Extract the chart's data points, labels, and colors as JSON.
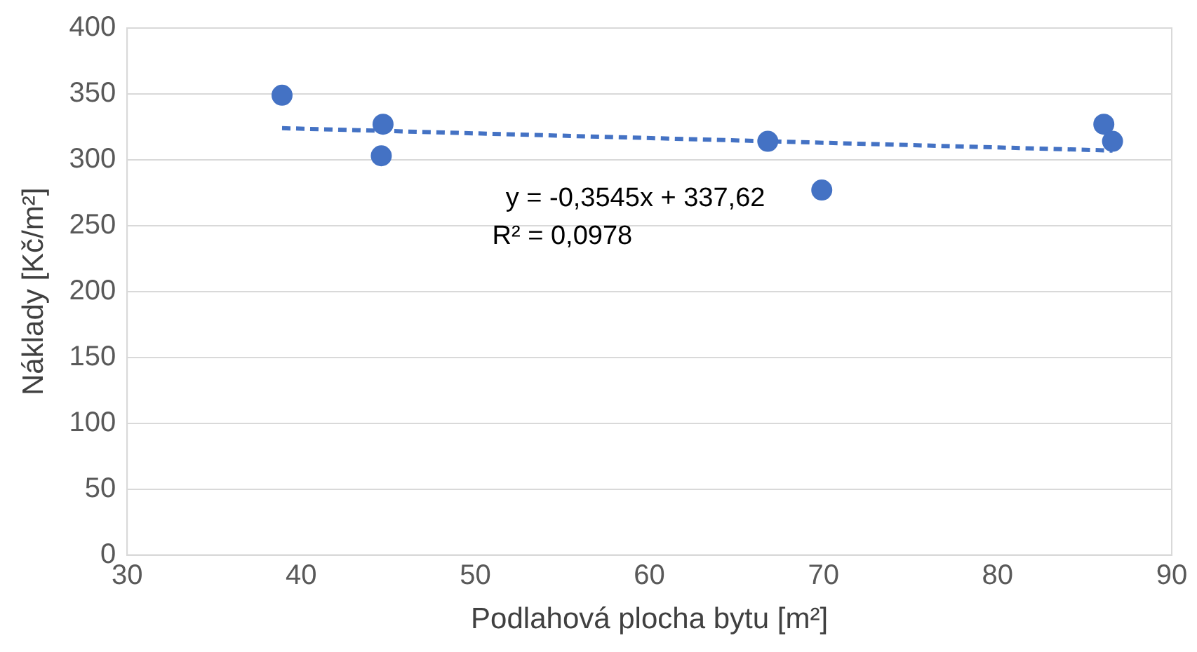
{
  "chart_data": {
    "type": "scatter",
    "xlabel": "Podlahová plocha bytu [m²]",
    "ylabel": "Náklady [Kč/m²]",
    "series": [
      {
        "type": "scatter",
        "color": "#4472c4",
        "x": [
          38.9,
          44.7,
          44.6,
          66.8,
          69.9,
          86.1,
          86.6
        ],
        "values": [
          349,
          327,
          303,
          314,
          277,
          327,
          314
        ],
        "marker": "circle"
      },
      {
        "type": "line",
        "color": "#4472c4",
        "x": [
          38.9,
          86.6
        ],
        "values": [
          324,
          307
        ],
        "line_style": "dashed",
        "marker": "none"
      }
    ],
    "annotations": [
      "y = -0,3545x + 337,62",
      "R² = 0,0978"
    ],
    "xlim": [
      30,
      90
    ],
    "xticks": [
      30,
      40,
      50,
      60,
      70,
      80,
      90
    ],
    "ylim": [
      0,
      400
    ],
    "yticks": [
      0,
      50,
      100,
      150,
      200,
      250,
      300,
      350,
      400
    ],
    "grid": "y",
    "legend": false
  }
}
